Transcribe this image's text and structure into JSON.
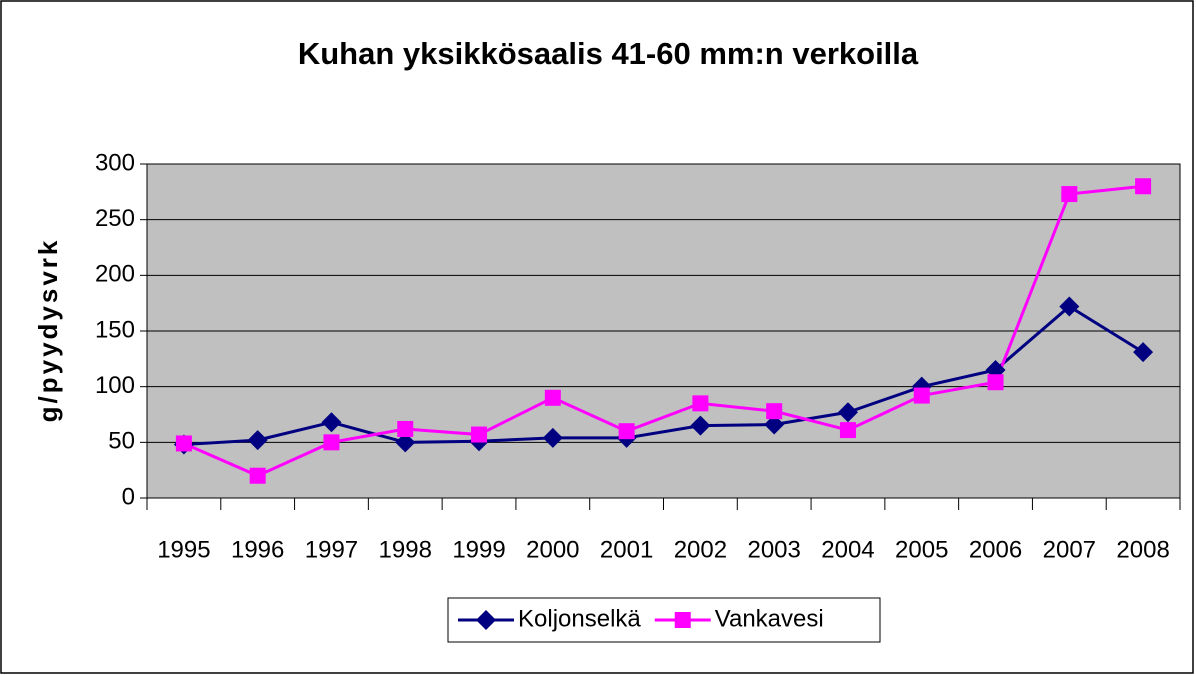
{
  "chart_data": {
    "type": "line",
    "title": "Kuhan yksikkösaalis 41-60 mm:n verkoilla",
    "y_label": "g/pyydysvrk",
    "categories": [
      "1995",
      "1996",
      "1997",
      "1998",
      "1999",
      "2000",
      "2001",
      "2002",
      "2003",
      "2004",
      "2005",
      "2006",
      "2007",
      "2008"
    ],
    "series": [
      {
        "name": "Koljonselkä",
        "color": "#000080",
        "marker": "diamond",
        "values": [
          48,
          52,
          68,
          50,
          51,
          54,
          54,
          65,
          66,
          77,
          100,
          115,
          172,
          131
        ]
      },
      {
        "name": "Vankavesi",
        "color": "#ff00ff",
        "marker": "square",
        "values": [
          49,
          20,
          50,
          62,
          57,
          90,
          60,
          85,
          78,
          61,
          92,
          104,
          273,
          280
        ]
      }
    ],
    "ylim": [
      0,
      300
    ],
    "yticks": [
      0,
      50,
      100,
      150,
      200,
      250,
      300
    ],
    "grid": true,
    "legend": "bottom"
  }
}
